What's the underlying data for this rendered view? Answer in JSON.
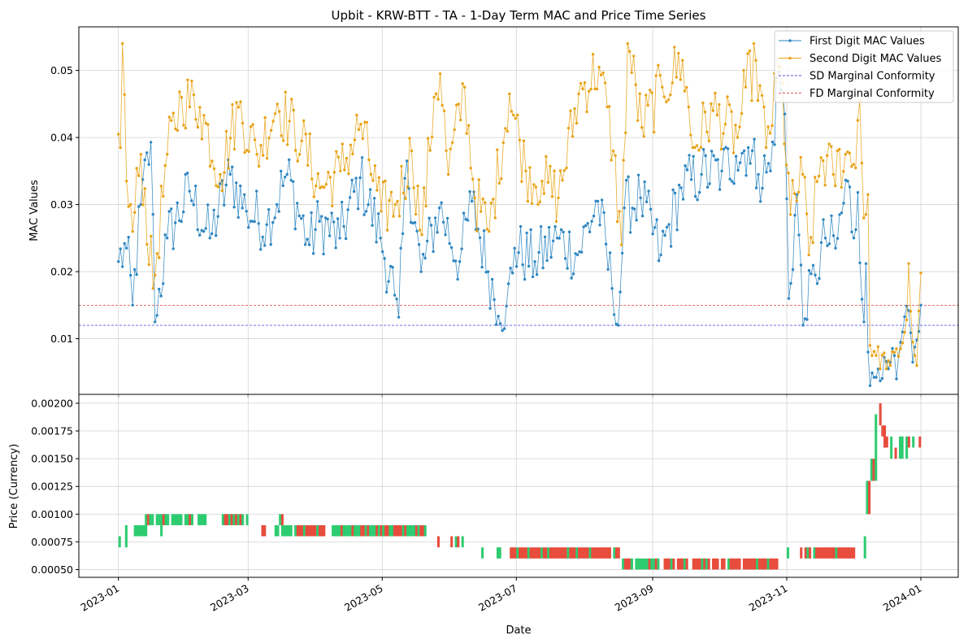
{
  "chart_data": [
    {
      "type": "line",
      "title": "Upbit - KRW-BTT - TA - 1-Day Term MAC and Price Time Series",
      "xlabel": "",
      "ylabel": "MAC Values",
      "ylim": [
        0.0017,
        0.0565
      ],
      "xlim": [
        "2022-12-14",
        "2024-01-18"
      ],
      "x_start": "2023-01-01",
      "x_end": "2024-01-01",
      "y_ticks": [
        "0.01",
        "0.02",
        "0.03",
        "0.04",
        "0.05"
      ],
      "grid": true,
      "legend_position": "top-right",
      "series": [
        {
          "name": "First Digit MAC Values",
          "color": "#2E86C1",
          "keyframes": [
            [
              "2023-01-01",
              0.0215
            ],
            [
              "2023-01-05",
              0.0235
            ],
            [
              "2023-01-08",
              0.015
            ],
            [
              "2023-01-12",
              0.03
            ],
            [
              "2023-01-17",
              0.0393
            ],
            [
              "2023-01-19",
              0.0125
            ],
            [
              "2023-01-25",
              0.025
            ],
            [
              "2023-02-05",
              0.032
            ],
            [
              "2023-02-15",
              0.025
            ],
            [
              "2023-02-25",
              0.0345
            ],
            [
              "2023-03-05",
              0.029
            ],
            [
              "2023-03-15",
              0.027
            ],
            [
              "2023-03-25",
              0.0345
            ],
            [
              "2023-04-05",
              0.024
            ],
            [
              "2023-04-10",
              0.0275
            ],
            [
              "2023-04-20",
              0.025
            ],
            [
              "2023-04-30",
              0.034
            ],
            [
              "2023-05-10",
              0.025
            ],
            [
              "2023-05-17",
              0.0165
            ],
            [
              "2023-05-19",
              0.0132
            ],
            [
              "2023-05-23",
              0.0365
            ],
            [
              "2023-05-30",
              0.02
            ],
            [
              "2023-06-08",
              0.0295
            ],
            [
              "2023-06-18",
              0.0215
            ],
            [
              "2023-06-24",
              0.0305
            ],
            [
              "2023-07-02",
              0.02
            ],
            [
              "2023-07-10",
              0.0115
            ],
            [
              "2023-07-15",
              0.0235
            ],
            [
              "2023-07-25",
              0.0215
            ],
            [
              "2023-08-05",
              0.025
            ],
            [
              "2023-08-15",
              0.0225
            ],
            [
              "2023-08-25",
              0.0305
            ],
            [
              "2023-09-01",
              0.0175
            ],
            [
              "2023-09-04",
              0.012
            ],
            [
              "2023-09-07",
              0.0295
            ],
            [
              "2023-09-15",
              0.031
            ],
            [
              "2023-09-25",
              0.0225
            ],
            [
              "2023-10-05",
              0.0325
            ],
            [
              "2023-10-15",
              0.0345
            ],
            [
              "2023-10-25",
              0.035
            ],
            [
              "2023-11-01",
              0.0372
            ],
            [
              "2023-11-07",
              0.0385
            ],
            [
              "2023-11-12",
              0.0345
            ],
            [
              "2023-11-18",
              0.035
            ],
            [
              "2023-11-22",
              0.0498
            ],
            [
              "2023-11-25",
              0.0435
            ],
            [
              "2023-11-27",
              0.016
            ],
            [
              "2023-12-01",
              0.0315
            ],
            [
              "2023-12-04",
              0.012
            ],
            [
              "2023-12-10",
              0.0195
            ],
            [
              "2023-12-15",
              0.025
            ],
            [
              "2023-12-20",
              0.0235
            ],
            [
              "2023-12-26",
              0.0335
            ],
            [
              "2023-12-29",
              0.025
            ],
            [
              "2023-12-31",
              0.0318
            ],
            [
              "2024-01-03",
              0.0125
            ],
            [
              "2024-01-04",
              0.0212
            ],
            [
              "2024-01-05",
              0.008
            ],
            [
              "2024-01-06",
              0.003
            ],
            [
              "2024-01-10",
              0.0055
            ],
            [
              "2024-01-15",
              0.0055
            ],
            [
              "2024-01-18",
              0.0075
            ],
            [
              "2024-01-19",
              0.004
            ],
            [
              "2024-01-22",
              0.011
            ],
            [
              "2024-01-25",
              0.0142
            ],
            [
              "2024-01-27",
              0.0065
            ],
            [
              "2024-01-29",
              0.0098
            ],
            [
              "2024-01-31",
              0.015
            ]
          ]
        },
        {
          "name": "Second Digit MAC Values",
          "color": "#E8A317",
          "keyframes": [
            [
              "2023-01-01",
              0.0405
            ],
            [
              "2023-01-02",
              0.0385
            ],
            [
              "2023-01-03",
              0.054
            ],
            [
              "2023-01-05",
              0.0335
            ],
            [
              "2023-01-08",
              0.026
            ],
            [
              "2023-01-12",
              0.0375
            ],
            [
              "2023-01-18",
              0.0175
            ],
            [
              "2023-01-25",
              0.0375
            ],
            [
              "2023-02-01",
              0.046
            ],
            [
              "2023-02-10",
              0.0445
            ],
            [
              "2023-02-20",
              0.0345
            ],
            [
              "2023-03-01",
              0.0445
            ],
            [
              "2023-03-10",
              0.0375
            ],
            [
              "2023-03-20",
              0.045
            ],
            [
              "2023-04-01",
              0.0395
            ],
            [
              "2023-04-10",
              0.0325
            ],
            [
              "2023-04-20",
              0.035
            ],
            [
              "2023-04-30",
              0.042
            ],
            [
              "2023-05-10",
              0.029
            ],
            [
              "2023-05-18",
              0.0305
            ],
            [
              "2023-05-25",
              0.038
            ],
            [
              "2023-05-30",
              0.0255
            ],
            [
              "2023-06-05",
              0.046
            ],
            [
              "2023-06-08",
              0.0495
            ],
            [
              "2023-06-12",
              0.0345
            ],
            [
              "2023-06-20",
              0.0475
            ],
            [
              "2023-06-25",
              0.031
            ],
            [
              "2023-07-02",
              0.026
            ],
            [
              "2023-07-12",
              0.0465
            ],
            [
              "2023-07-20",
              0.035
            ],
            [
              "2023-07-28",
              0.0335
            ],
            [
              "2023-08-05",
              0.031
            ],
            [
              "2023-08-15",
              0.0465
            ],
            [
              "2023-08-25",
              0.0505
            ],
            [
              "2023-09-01",
              0.038
            ],
            [
              "2023-09-05",
              0.024
            ],
            [
              "2023-09-08",
              0.054
            ],
            [
              "2023-09-15",
              0.0415
            ],
            [
              "2023-09-25",
              0.0475
            ],
            [
              "2023-10-05",
              0.0515
            ],
            [
              "2023-10-10",
              0.0385
            ],
            [
              "2023-10-20",
              0.044
            ],
            [
              "2023-11-01",
              0.04
            ],
            [
              "2023-11-05",
              0.0475
            ],
            [
              "2023-11-10",
              0.0515
            ],
            [
              "2023-11-15",
              0.0385
            ],
            [
              "2023-11-22",
              0.0505
            ],
            [
              "2023-11-27",
              0.0285
            ],
            [
              "2023-12-03",
              0.0345
            ],
            [
              "2023-12-06",
              0.0225
            ],
            [
              "2023-12-12",
              0.037
            ],
            [
              "2023-12-18",
              0.0345
            ],
            [
              "2023-12-24",
              0.0375
            ],
            [
              "2023-12-28",
              0.036
            ],
            [
              "2023-12-31",
              0.0455
            ],
            [
              "2024-01-02",
              0.028
            ],
            [
              "2024-01-04",
              0.0315
            ],
            [
              "2024-01-05",
              0.009
            ],
            [
              "2024-01-08",
              0.0075
            ],
            [
              "2024-01-15",
              0.006
            ],
            [
              "2024-01-20",
              0.0085
            ],
            [
              "2024-01-23",
              0.0128
            ],
            [
              "2024-01-24",
              0.0212
            ],
            [
              "2024-01-26",
              0.0095
            ],
            [
              "2024-01-28",
              0.006
            ],
            [
              "2024-01-30",
              0.0198
            ]
          ]
        }
      ],
      "reference_lines": [
        {
          "name": "SD Marginal Conformity",
          "value": 0.012,
          "color": "#1B1BD9"
        },
        {
          "name": "FD Marginal Conformity",
          "value": 0.015,
          "color": "#E31A1C"
        }
      ]
    },
    {
      "type": "bar",
      "title": "",
      "xlabel": "Date",
      "ylabel": "Price (Currency)",
      "ylim": [
        0.00043,
        0.00208
      ],
      "xlim": [
        "2022-12-14",
        "2024-01-18"
      ],
      "y_ticks": [
        "0.00050",
        "0.00075",
        "0.00100",
        "0.00125",
        "0.00150",
        "0.00175",
        "0.00200"
      ],
      "x_ticks": [
        "2023-01",
        "2023-03",
        "2023-05",
        "2023-07",
        "2023-09",
        "2023-11",
        "2024-01"
      ],
      "grid": true,
      "colors": {
        "up": "#2ECC71",
        "down": "#E74C3C"
      },
      "segments": [
        {
          "from": "2023-01-01",
          "to": "2023-01-02",
          "low": 0.0007,
          "high": 0.0008,
          "pattern": "G"
        },
        {
          "from": "2023-01-04",
          "to": "2023-01-05",
          "low": 0.0007,
          "high": 0.0009,
          "pattern": "G"
        },
        {
          "from": "2023-01-08",
          "to": "2023-01-15",
          "low": 0.0008,
          "high": 0.0009,
          "pattern": "GGGGGG."
        },
        {
          "from": "2023-01-13",
          "to": "2023-02-10",
          "low": 0.0009,
          "high": 0.001,
          "pattern": "GRGG.GGGRGG.GGGGG.GGRG..GGGG"
        },
        {
          "from": "2023-01-20",
          "to": "2023-01-21",
          "low": 0.0008,
          "high": 0.0009,
          "pattern": "G"
        },
        {
          "from": "2023-02-17",
          "to": "2023-03-02",
          "low": 0.0009,
          "high": 0.001,
          "pattern": "GRRGRGRGRG.G"
        },
        {
          "from": "2023-03-07",
          "to": "2023-03-10",
          "low": 0.0008,
          "high": 0.0009,
          "pattern": "RR"
        },
        {
          "from": "2023-03-13",
          "to": "2023-04-05",
          "low": 0.0008,
          "high": 0.0009,
          "pattern": "GG.GGGGG.GRRRGRRRRRGRRR"
        },
        {
          "from": "2023-03-15",
          "to": "2023-03-18",
          "low": 0.0009,
          "high": 0.001,
          "pattern": "GR"
        },
        {
          "from": "2023-04-08",
          "to": "2023-05-22",
          "low": 0.0008,
          "high": 0.0009,
          "pattern": "GGGGRGGGGRGGGRRGRGGGRGRGRRGGRRRRGRGGGGRGRRG"
        },
        {
          "from": "2023-05-26",
          "to": "2023-05-28",
          "low": 0.0007,
          "high": 0.0008,
          "pattern": "R"
        },
        {
          "from": "2023-06-01",
          "to": "2023-06-09",
          "low": 0.0007,
          "high": 0.0008,
          "pattern": "R.GR.G"
        },
        {
          "from": "2023-06-15",
          "to": "2023-06-17",
          "low": 0.0006,
          "high": 0.0007,
          "pattern": "G"
        },
        {
          "from": "2023-06-22",
          "to": "2023-06-25",
          "low": 0.0006,
          "high": 0.0007,
          "pattern": "GG"
        },
        {
          "from": "2023-06-28",
          "to": "2023-08-20",
          "low": 0.0006,
          "high": 0.0007,
          "pattern": "RRRGRRRRGRRRRRGRRGRRRRRRRRGRRRGRRRRRGRRRRRRRRR.GRR"
        },
        {
          "from": "2023-08-18",
          "to": "2023-10-30",
          "low": 0.0005,
          "high": 0.0006,
          "pattern": "GRRRG.GGGGGGRGGRG..RRRGR.RRRGR..RRRRGRGR.RRR.RR.GRRRRR.RRRRRRGRRRRGRRRR"
        },
        {
          "from": "2023-11-01",
          "to": "2023-11-03",
          "low": 0.0006,
          "high": 0.0007,
          "pattern": "G"
        },
        {
          "from": "2023-11-07",
          "to": "2023-12-06",
          "low": 0.0006,
          "high": 0.0007,
          "pattern": "R.RGR.GRRRRRRRRRGRRRRRRRR"
        },
        {
          "from": "2023-12-06",
          "to": "2023-12-07",
          "low": 0.0006,
          "high": 0.0008,
          "pattern": "G"
        },
        {
          "from": "2023-12-07",
          "to": "2023-12-08",
          "low": 0.001,
          "high": 0.0013,
          "pattern": "G"
        },
        {
          "from": "2023-12-08",
          "to": "2023-12-09",
          "low": 0.001,
          "high": 0.0013,
          "pattern": "R"
        },
        {
          "from": "2023-12-09",
          "to": "2023-12-10",
          "low": 0.0013,
          "high": 0.0015,
          "pattern": "G"
        },
        {
          "from": "2023-12-10",
          "to": "2023-12-11",
          "low": 0.0013,
          "high": 0.0015,
          "pattern": "R"
        },
        {
          "from": "2023-12-11",
          "to": "2023-12-12",
          "low": 0.0013,
          "high": 0.0019,
          "pattern": "G"
        },
        {
          "from": "2023-12-13",
          "to": "2023-12-14",
          "low": 0.0018,
          "high": 0.002,
          "pattern": "R"
        },
        {
          "from": "2023-12-14",
          "to": "2023-12-15",
          "low": 0.0017,
          "high": 0.0018,
          "pattern": "R"
        },
        {
          "from": "2023-12-15",
          "to": "2023-12-16",
          "low": 0.0016,
          "high": 0.0018,
          "pattern": "R"
        },
        {
          "from": "2023-12-16",
          "to": "2023-12-17",
          "low": 0.0016,
          "high": 0.0017,
          "pattern": "R"
        },
        {
          "from": "2023-12-18",
          "to": "2023-12-19",
          "low": 0.0015,
          "high": 0.0017,
          "pattern": "G"
        },
        {
          "from": "2023-12-20",
          "to": "2023-12-21",
          "low": 0.0015,
          "high": 0.0016,
          "pattern": "R"
        },
        {
          "from": "2023-12-22",
          "to": "2023-12-26",
          "low": 0.0015,
          "high": 0.0017,
          "pattern": "GG.G"
        },
        {
          "from": "2023-12-26",
          "to": "2023-12-27",
          "low": 0.0016,
          "high": 0.0017,
          "pattern": "R"
        },
        {
          "from": "2023-12-28",
          "to": "2023-12-29",
          "low": 0.0016,
          "high": 0.0017,
          "pattern": "G"
        },
        {
          "from": "2023-12-31",
          "to": "2024-01-01",
          "low": 0.0016,
          "high": 0.0017,
          "pattern": "R"
        }
      ]
    }
  ]
}
